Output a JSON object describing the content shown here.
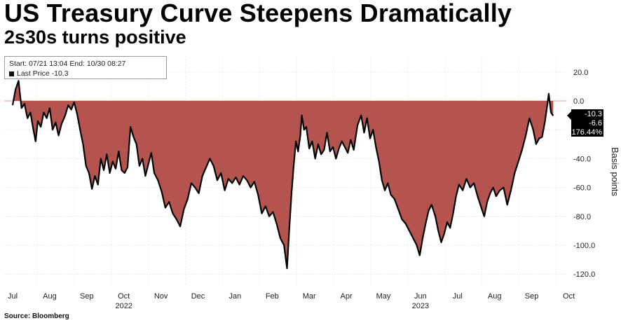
{
  "title": "US Treasury Curve Steepens Dramatically",
  "subtitle": "2s30s turns positive",
  "info": {
    "range": "Start: 07/21 13:04 End: 10/30 08:27",
    "last_price": "Last Price -10.3"
  },
  "source": "Source: Bloomberg",
  "colors": {
    "fill": "#b5544f",
    "line": "#000000",
    "highlight": "#e8a090"
  },
  "chart_data": {
    "type": "area",
    "ylabel": "Basis points",
    "ylim": [
      -125,
      27
    ],
    "yticks": [
      "20.0",
      "0.0",
      "-20.0",
      "-40.0",
      "-60.0",
      "-80.0",
      "-100.0",
      "-120.0"
    ],
    "ytick_values": [
      20,
      0,
      -20,
      -40,
      -60,
      -80,
      -100,
      -120
    ],
    "x_labels": [
      "Jul",
      "Aug",
      "Sep",
      "Oct",
      "Nov",
      "Dec",
      "Jan",
      "Feb",
      "Mar",
      "Apr",
      "May",
      "Jun",
      "Jul",
      "Aug",
      "Sep",
      "Oct"
    ],
    "x_label_months": [
      0,
      1,
      2,
      3,
      4,
      5,
      6,
      7,
      8,
      9,
      10,
      11,
      12,
      13,
      14,
      15
    ],
    "years": [
      {
        "label": "2022",
        "month": 3
      },
      {
        "label": "2023",
        "month": 11
      }
    ],
    "value_labels": [
      "-10.3",
      "-6.6",
      "-176.44%"
    ],
    "series": [
      {
        "values": [
          [
            0.0,
            -3
          ],
          [
            0.08,
            8
          ],
          [
            0.16,
            14
          ],
          [
            0.24,
            -5
          ],
          [
            0.32,
            -2
          ],
          [
            0.4,
            -12
          ],
          [
            0.48,
            -8
          ],
          [
            0.56,
            -20
          ],
          [
            0.62,
            -28
          ],
          [
            0.68,
            -14
          ],
          [
            0.76,
            -18
          ],
          [
            0.84,
            -8
          ],
          [
            0.92,
            -12
          ],
          [
            1.0,
            -5
          ],
          [
            1.08,
            -20
          ],
          [
            1.16,
            -15
          ],
          [
            1.24,
            -24
          ],
          [
            1.32,
            -16
          ],
          [
            1.42,
            -10
          ],
          [
            1.5,
            -3
          ],
          [
            1.58,
            -6
          ],
          [
            1.66,
            -1
          ],
          [
            1.74,
            -9
          ],
          [
            1.82,
            -20
          ],
          [
            1.9,
            -30
          ],
          [
            1.98,
            -45
          ],
          [
            2.06,
            -50
          ],
          [
            2.14,
            -61
          ],
          [
            2.22,
            -52
          ],
          [
            2.3,
            -58
          ],
          [
            2.38,
            -40
          ],
          [
            2.46,
            -48
          ],
          [
            2.54,
            -37
          ],
          [
            2.62,
            -50
          ],
          [
            2.7,
            -42
          ],
          [
            2.78,
            -47
          ],
          [
            2.86,
            -35
          ],
          [
            2.94,
            -48
          ],
          [
            3.02,
            -50
          ],
          [
            3.1,
            -46
          ],
          [
            3.18,
            -18
          ],
          [
            3.26,
            -25
          ],
          [
            3.34,
            -30
          ],
          [
            3.42,
            -45
          ],
          [
            3.5,
            -40
          ],
          [
            3.58,
            -52
          ],
          [
            3.66,
            -44
          ],
          [
            3.74,
            -36
          ],
          [
            3.82,
            -50
          ],
          [
            3.92,
            -55
          ],
          [
            4.02,
            -63
          ],
          [
            4.12,
            -74
          ],
          [
            4.22,
            -70
          ],
          [
            4.32,
            -78
          ],
          [
            4.42,
            -82
          ],
          [
            4.52,
            -87
          ],
          [
            4.62,
            -75
          ],
          [
            4.72,
            -68
          ],
          [
            4.82,
            -57
          ],
          [
            4.92,
            -60
          ],
          [
            5.02,
            -64
          ],
          [
            5.12,
            -52
          ],
          [
            5.22,
            -46
          ],
          [
            5.32,
            -40
          ],
          [
            5.42,
            -45
          ],
          [
            5.52,
            -55
          ],
          [
            5.62,
            -50
          ],
          [
            5.72,
            -62
          ],
          [
            5.82,
            -54
          ],
          [
            5.92,
            -57
          ],
          [
            6.02,
            -53
          ],
          [
            6.12,
            -58
          ],
          [
            6.22,
            -52
          ],
          [
            6.32,
            -55
          ],
          [
            6.42,
            -60
          ],
          [
            6.52,
            -56
          ],
          [
            6.62,
            -65
          ],
          [
            6.72,
            -78
          ],
          [
            6.82,
            -73
          ],
          [
            6.92,
            -80
          ],
          [
            7.02,
            -77
          ],
          [
            7.12,
            -85
          ],
          [
            7.22,
            -95
          ],
          [
            7.32,
            -100
          ],
          [
            7.4,
            -116
          ],
          [
            7.46,
            -90
          ],
          [
            7.52,
            -65
          ],
          [
            7.58,
            -45
          ],
          [
            7.64,
            -28
          ],
          [
            7.7,
            -35
          ],
          [
            7.76,
            -24
          ],
          [
            7.8,
            -10
          ],
          [
            7.86,
            -20
          ],
          [
            7.92,
            -18
          ],
          [
            8.0,
            -33
          ],
          [
            8.08,
            -28
          ],
          [
            8.16,
            -40
          ],
          [
            8.24,
            -30
          ],
          [
            8.32,
            -37
          ],
          [
            8.4,
            -34
          ],
          [
            8.48,
            -22
          ],
          [
            8.56,
            -35
          ],
          [
            8.64,
            -32
          ],
          [
            8.72,
            -40
          ],
          [
            8.8,
            -33
          ],
          [
            8.88,
            -28
          ],
          [
            8.96,
            -32
          ],
          [
            9.04,
            -36
          ],
          [
            9.12,
            -27
          ],
          [
            9.2,
            -34
          ],
          [
            9.3,
            -17
          ],
          [
            9.4,
            -10
          ],
          [
            9.48,
            -22
          ],
          [
            9.56,
            -12
          ],
          [
            9.64,
            -26
          ],
          [
            9.72,
            -20
          ],
          [
            9.8,
            -32
          ],
          [
            9.88,
            -42
          ],
          [
            9.96,
            -55
          ],
          [
            10.04,
            -62
          ],
          [
            10.12,
            -57
          ],
          [
            10.2,
            -65
          ],
          [
            10.3,
            -68
          ],
          [
            10.4,
            -75
          ],
          [
            10.5,
            -82
          ],
          [
            10.6,
            -85
          ],
          [
            10.7,
            -90
          ],
          [
            10.8,
            -95
          ],
          [
            10.9,
            -100
          ],
          [
            10.98,
            -107
          ],
          [
            11.06,
            -95
          ],
          [
            11.14,
            -85
          ],
          [
            11.22,
            -76
          ],
          [
            11.3,
            -72
          ],
          [
            11.4,
            -80
          ],
          [
            11.48,
            -90
          ],
          [
            11.56,
            -98
          ],
          [
            11.64,
            -92
          ],
          [
            11.72,
            -84
          ],
          [
            11.8,
            -88
          ],
          [
            11.88,
            -78
          ],
          [
            11.96,
            -66
          ],
          [
            12.04,
            -58
          ],
          [
            12.14,
            -62
          ],
          [
            12.24,
            -54
          ],
          [
            12.34,
            -60
          ],
          [
            12.44,
            -57
          ],
          [
            12.54,
            -66
          ],
          [
            12.64,
            -74
          ],
          [
            12.72,
            -80
          ],
          [
            12.8,
            -70
          ],
          [
            12.88,
            -64
          ],
          [
            12.96,
            -60
          ],
          [
            13.04,
            -66
          ],
          [
            13.14,
            -62
          ],
          [
            13.24,
            -60
          ],
          [
            13.34,
            -72
          ],
          [
            13.44,
            -62
          ],
          [
            13.54,
            -50
          ],
          [
            13.64,
            -42
          ],
          [
            13.74,
            -34
          ],
          [
            13.84,
            -24
          ],
          [
            13.94,
            -12
          ],
          [
            14.04,
            -20
          ],
          [
            14.12,
            -30
          ],
          [
            14.2,
            -26
          ],
          [
            14.28,
            -25
          ],
          [
            14.36,
            -14
          ],
          [
            14.42,
            -3
          ],
          [
            14.46,
            5
          ],
          [
            14.52,
            -8
          ],
          [
            14.58,
            -10.3
          ]
        ]
      }
    ]
  }
}
